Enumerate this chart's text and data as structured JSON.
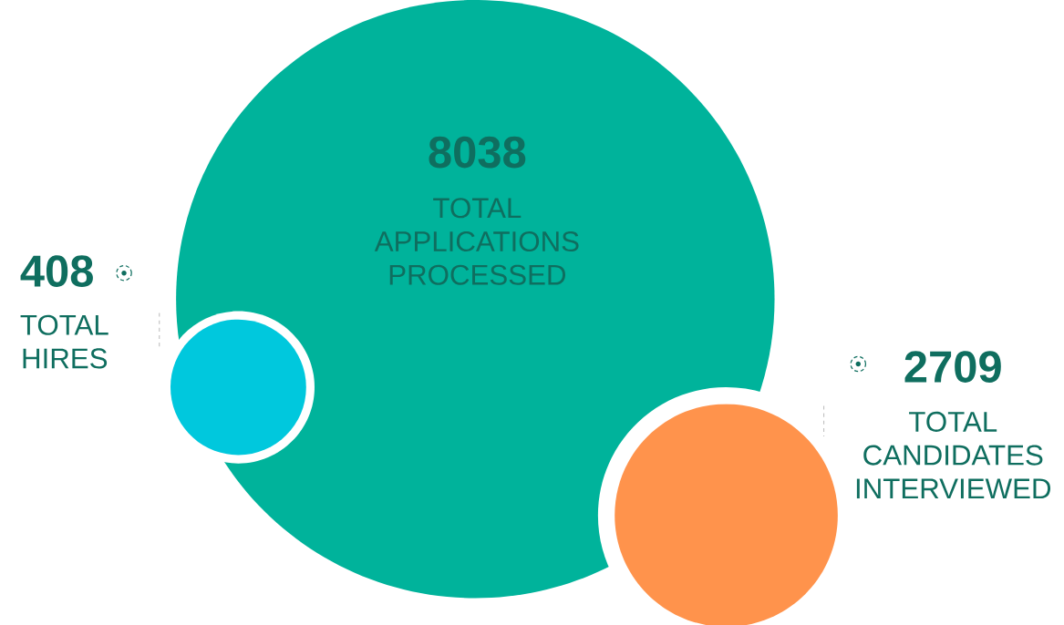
{
  "chart_data": {
    "type": "other",
    "categories": [
      "TOTAL APPLICATIONS PROCESSED",
      "TOTAL HIRES",
      "TOTAL CANDIDATES INTERVIEWED"
    ],
    "values": [
      8038,
      408,
      2709
    ],
    "colors": [
      "#00b39b",
      "#00c8dd",
      "#ff934c"
    ],
    "data_labels": true
  }
}
